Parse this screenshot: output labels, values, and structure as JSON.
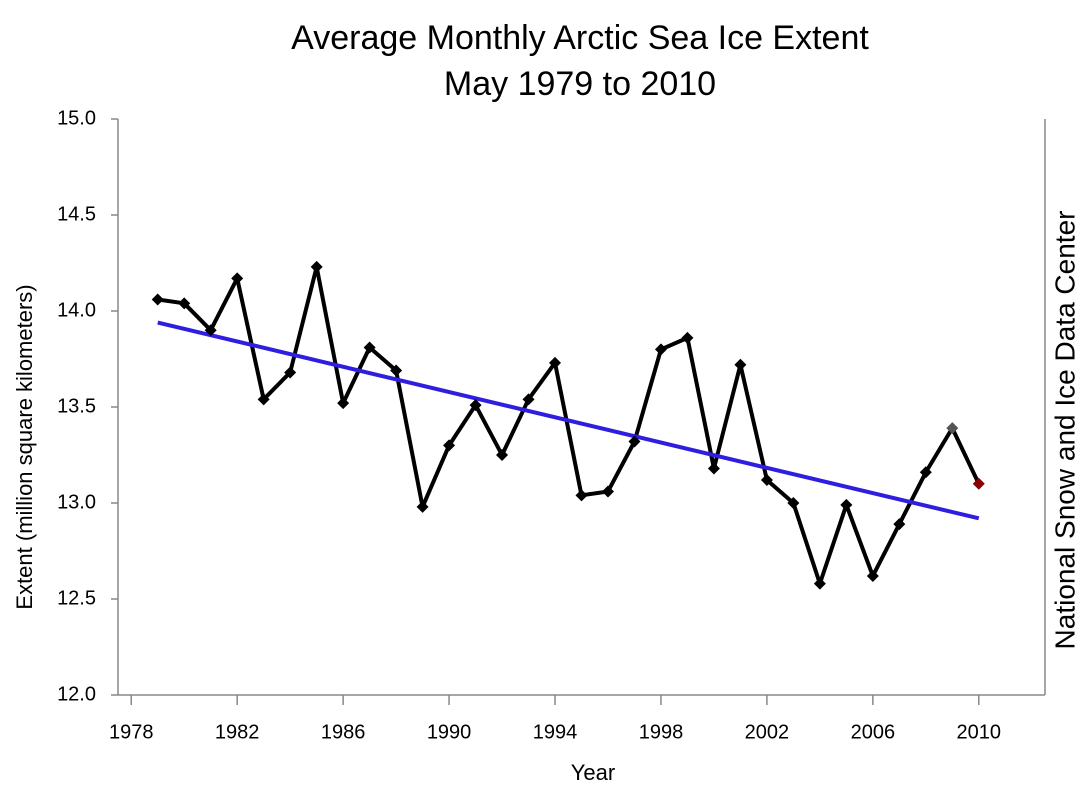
{
  "chart_data": {
    "type": "line",
    "title": "Average Monthly Arctic Sea Ice Extent",
    "subtitle": "May 1979 to 2010",
    "x_label": "Year",
    "y_label": "Extent (million square kilometers)",
    "credit": "National Snow and Ice Data Center",
    "x": [
      1979,
      1980,
      1981,
      1982,
      1983,
      1984,
      1985,
      1986,
      1987,
      1988,
      1989,
      1990,
      1991,
      1992,
      1993,
      1994,
      1995,
      1996,
      1997,
      1998,
      1999,
      2000,
      2001,
      2002,
      2003,
      2004,
      2005,
      2006,
      2007,
      2008,
      2009,
      2010
    ],
    "series": [
      {
        "color": "#000000",
        "values": [
          14.06,
          14.04,
          13.9,
          14.17,
          13.54,
          13.68,
          14.23,
          13.52,
          13.81,
          13.69,
          12.98,
          13.3,
          13.51,
          13.25,
          13.54,
          13.73,
          13.04,
          13.06,
          13.32,
          13.8,
          13.86,
          13.18,
          13.72,
          13.12,
          13.0,
          12.58,
          12.99,
          12.62,
          12.89,
          13.16,
          13.39,
          13.1
        ],
        "point_colors": [
          "#000000",
          "#000000",
          "#000000",
          "#000000",
          "#000000",
          "#000000",
          "#000000",
          "#000000",
          "#000000",
          "#000000",
          "#000000",
          "#000000",
          "#000000",
          "#000000",
          "#000000",
          "#000000",
          "#000000",
          "#000000",
          "#000000",
          "#000000",
          "#000000",
          "#000000",
          "#000000",
          "#000000",
          "#000000",
          "#000000",
          "#000000",
          "#000000",
          "#000000",
          "#000000",
          "#555555",
          "#8b0000"
        ]
      }
    ],
    "trend": {
      "x": [
        1979,
        2010
      ],
      "values": [
        13.94,
        12.92
      ],
      "color": "#2f1ee0"
    },
    "xlim": [
      1977.5,
      2012.5
    ],
    "xticks": [
      1978,
      1982,
      1986,
      1990,
      1994,
      1998,
      2002,
      2006,
      2010
    ],
    "ylim": [
      12,
      15
    ],
    "yticks": [
      {
        "value": 12,
        "label": "12.0"
      },
      {
        "value": 12.5,
        "label": "12.5"
      },
      {
        "value": 13,
        "label": "13.0"
      },
      {
        "value": 13.5,
        "label": "13.5"
      },
      {
        "value": 14,
        "label": "14.0"
      },
      {
        "value": 14.5,
        "label": "14.5"
      },
      {
        "value": 15,
        "label": "15.0"
      }
    ],
    "grid": false
  }
}
